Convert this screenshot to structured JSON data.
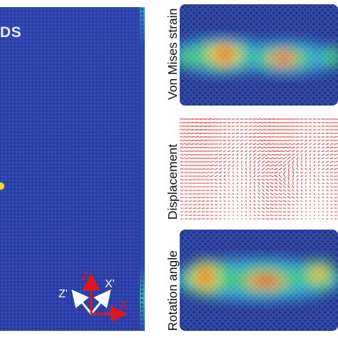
{
  "figure": {
    "left_panel": {
      "label": "DS",
      "background_color": "#2a3fa8",
      "axes_triad": {
        "axes": [
          "Z",
          "Z'",
          "X'",
          "X"
        ],
        "colors": {
          "Z": "#e0161d",
          "Z'": "#ffffff",
          "X'": "#ffffff",
          "X": "#e0161d"
        }
      }
    },
    "right_panels": [
      {
        "label": "Von Mises  strain",
        "kind": "heatmap"
      },
      {
        "label": "Displacement",
        "kind": "vector-field",
        "vector_color": "#e01818"
      },
      {
        "label": "Rotation angle",
        "kind": "heatmap"
      }
    ]
  }
}
